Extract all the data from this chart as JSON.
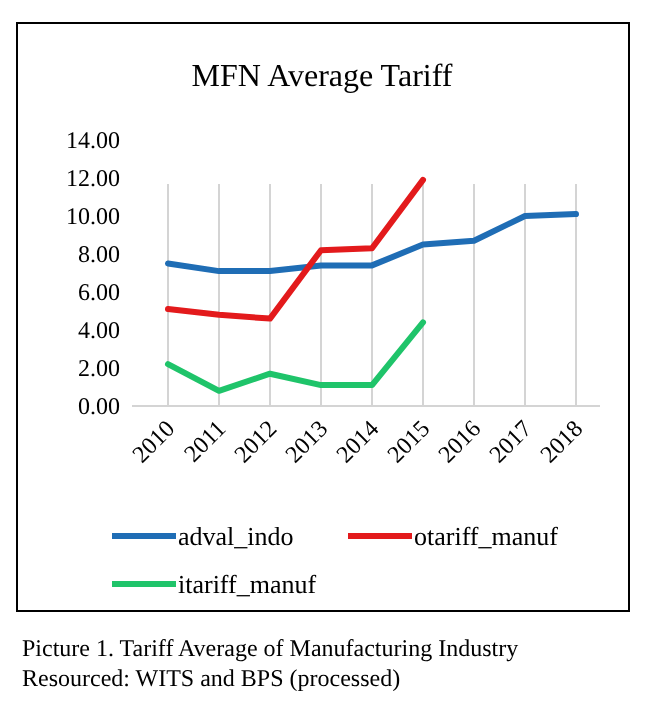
{
  "chart_data": {
    "type": "line",
    "title": "MFN Average Tariff",
    "categories": [
      "2010",
      "2011",
      "2012",
      "2013",
      "2014",
      "2015",
      "2016",
      "2017",
      "2018"
    ],
    "series": [
      {
        "name": "adval_indo",
        "color": "#1f6db5",
        "values": [
          7.5,
          7.1,
          7.1,
          7.4,
          7.4,
          8.5,
          8.7,
          10.0,
          10.1
        ]
      },
      {
        "name": "otariff_manuf",
        "color": "#e31a1c",
        "values": [
          5.1,
          4.8,
          4.6,
          8.2,
          8.3,
          11.9,
          null,
          null,
          null
        ]
      },
      {
        "name": "itariff_manuf",
        "color": "#1fc46a",
        "values": [
          2.2,
          0.8,
          1.7,
          1.1,
          1.1,
          4.4,
          null,
          null,
          null
        ]
      }
    ],
    "ylim": [
      0,
      14
    ],
    "yticks": [
      {
        "value": 0,
        "label": "0.00"
      },
      {
        "value": 2,
        "label": "2.00"
      },
      {
        "value": 4,
        "label": "4.00"
      },
      {
        "value": 6,
        "label": "6.00"
      },
      {
        "value": 8,
        "label": "8.00"
      },
      {
        "value": 10,
        "label": "10.00"
      },
      {
        "value": 12,
        "label": "12.00"
      },
      {
        "value": 14,
        "label": "14.00"
      }
    ],
    "grid": "x",
    "legend": "bottom",
    "marker": "none",
    "line_style": "solid",
    "annotations": [
      "Picture 1. Tariff Average of Manufacturing Industry",
      "Resourced: WITS and BPS (processed)"
    ]
  }
}
